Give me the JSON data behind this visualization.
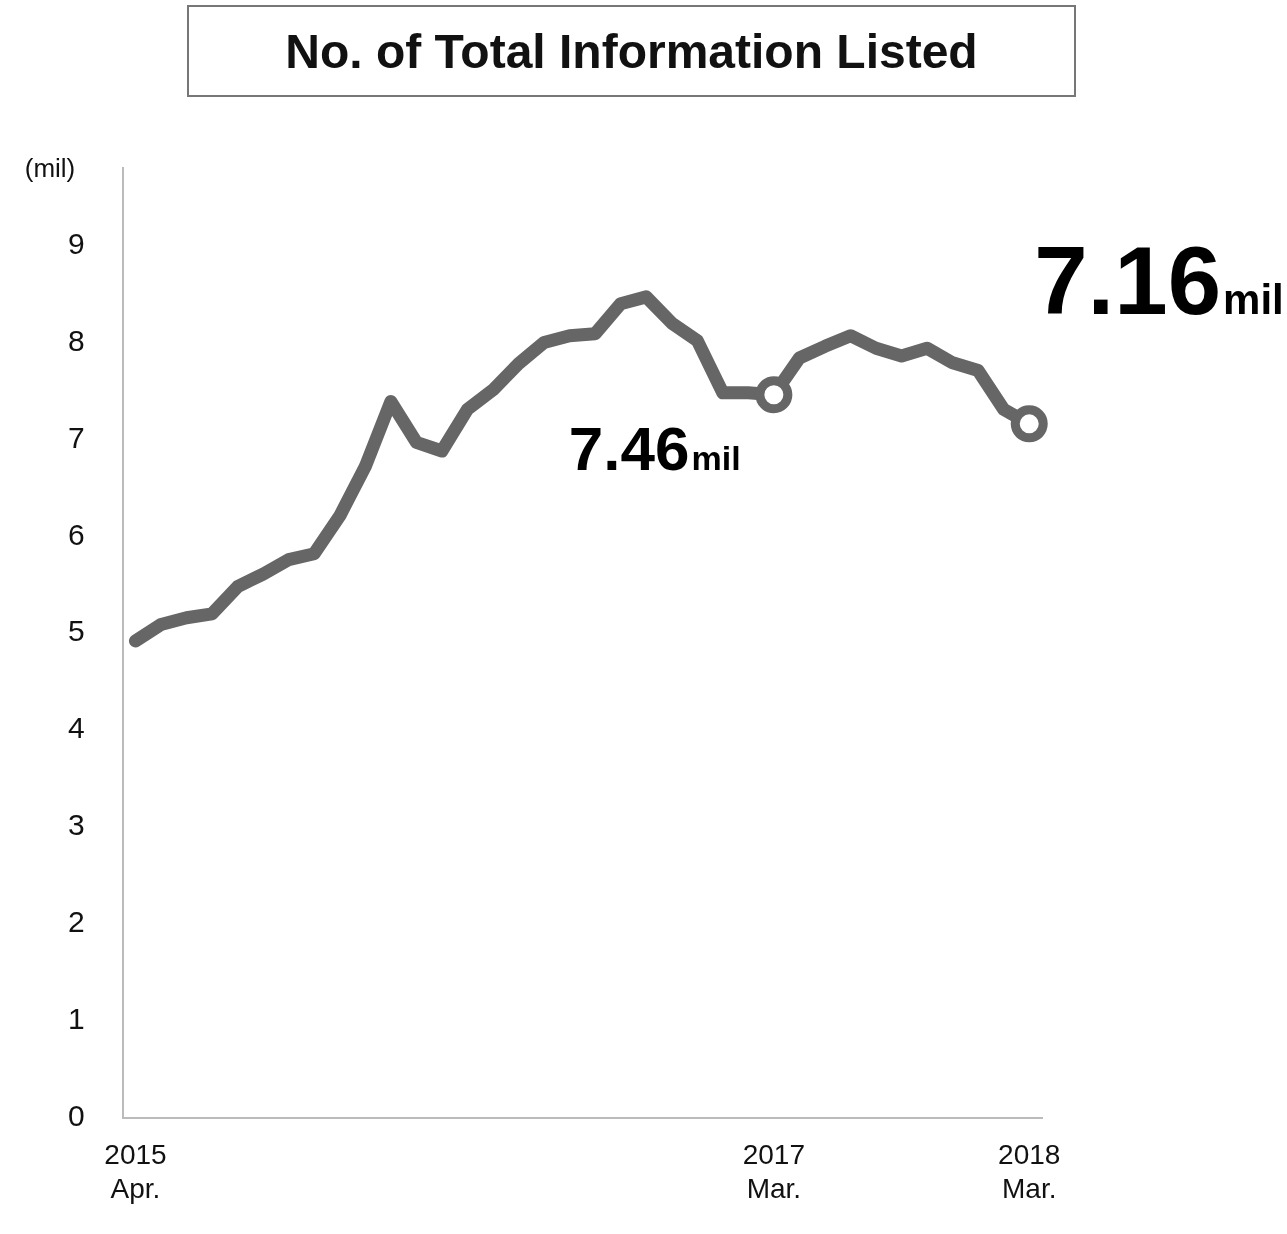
{
  "chart_data": {
    "type": "line",
    "title": "No. of Total Information Listed",
    "ylabel": "(mil)",
    "categories": [
      "2015\nApr.",
      null,
      null,
      null,
      null,
      null,
      null,
      null,
      null,
      null,
      null,
      null,
      null,
      null,
      null,
      null,
      null,
      null,
      null,
      null,
      null,
      null,
      null,
      null,
      null,
      "2017\nMar.",
      null,
      null,
      null,
      null,
      null,
      null,
      null,
      null,
      null,
      "2018\nMar."
    ],
    "series": [
      {
        "color": "#666666",
        "values": [
          4.92,
          5.09,
          5.16,
          5.2,
          5.48,
          5.61,
          5.76,
          5.82,
          6.21,
          6.72,
          7.39,
          6.97,
          6.88,
          7.31,
          7.51,
          7.78,
          8.0,
          8.07,
          8.09,
          8.4,
          8.47,
          8.2,
          8.02,
          7.48,
          7.48,
          7.46,
          7.84,
          7.96,
          8.07,
          7.94,
          7.86,
          7.94,
          7.79,
          7.71,
          7.31,
          7.16
        ],
        "value_labels": [
          null,
          null,
          null,
          null,
          null,
          null,
          null,
          null,
          null,
          null,
          null,
          null,
          null,
          null,
          null,
          null,
          null,
          null,
          null,
          null,
          null,
          null,
          null,
          null,
          null,
          "7.46mil",
          null,
          null,
          null,
          null,
          null,
          null,
          null,
          null,
          null,
          "7.16mil"
        ]
      }
    ],
    "ylim": [
      0,
      9.8
    ],
    "yticks": [
      0,
      1,
      2,
      3,
      4,
      5,
      6,
      7,
      8,
      9
    ],
    "grid": false,
    "legend": false,
    "line_style": "solid"
  }
}
